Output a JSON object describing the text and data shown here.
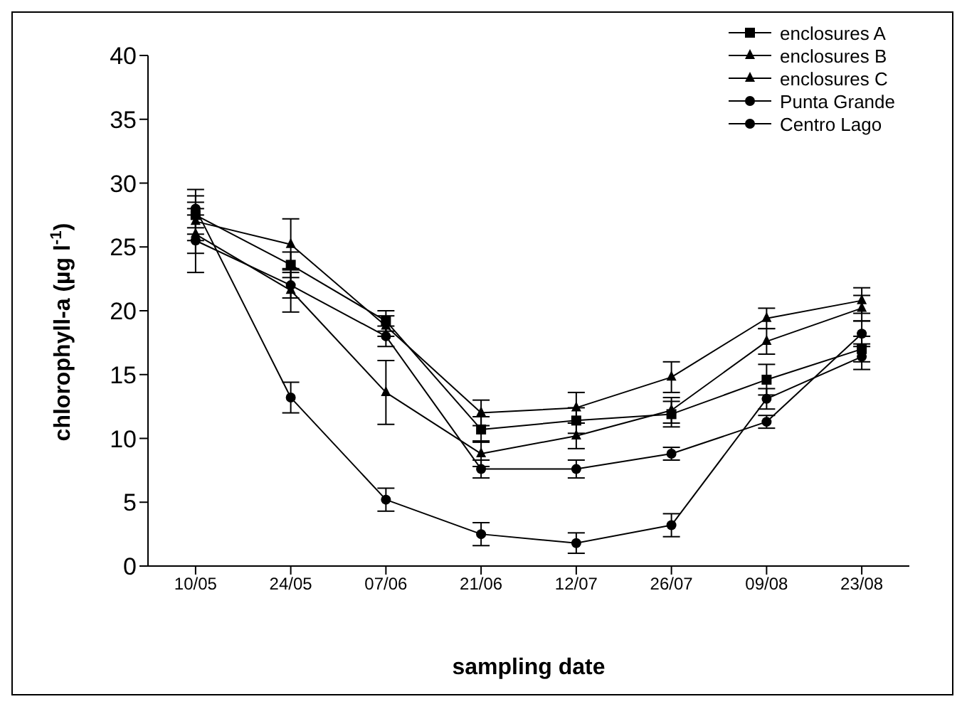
{
  "chart_data": {
    "type": "line",
    "xlabel": "sampling date",
    "ylabel": "chlorophyll-a (µg l$^{-1}$)",
    "categories": [
      "10/05",
      "24/05",
      "07/06",
      "21/06",
      "12/07",
      "26/07",
      "09/08",
      "23/08"
    ],
    "ylim": [
      0,
      40
    ],
    "yticks": [
      0,
      5,
      10,
      15,
      20,
      25,
      30,
      35,
      40
    ],
    "grid": false,
    "legend": "top right",
    "line_style": "solid",
    "series": [
      {
        "name": "enclosures A",
        "color": "#000000",
        "marker": "square",
        "values": [
          27.5,
          23.6,
          19.2,
          10.7,
          11.4,
          11.9,
          14.6,
          17
        ],
        "errors": [
          1.5,
          1,
          0.8,
          1,
          1,
          1,
          1.2,
          1
        ]
      },
      {
        "name": "enclosures B",
        "color": "#000000",
        "marker": "triangle",
        "values": [
          26,
          21.6,
          13.6,
          8.8,
          10.2,
          12.2,
          17.6,
          20.2
        ],
        "errors": [
          1.5,
          1.7,
          2.5,
          1,
          1,
          1,
          1,
          1
        ]
      },
      {
        "name": "enclosures C",
        "color": "#000000",
        "marker": "triangle",
        "values": [
          27,
          25.2,
          18.8,
          12,
          12.4,
          14.8,
          19.4,
          20.8
        ],
        "errors": [
          1.5,
          2,
          0.8,
          1,
          1.2,
          1.2,
          0.8,
          1
        ]
      },
      {
        "name": "Punta Grande",
        "color": "#000000",
        "marker": "circle",
        "values": [
          25.5,
          22,
          18,
          7.6,
          7.6,
          8.8,
          11.3,
          18.2
        ],
        "errors": [
          2.5,
          1,
          0.8,
          0.7,
          0.7,
          0.5,
          0.5,
          1
        ]
      },
      {
        "name": "Centro Lago",
        "color": "#000000",
        "marker": "circle",
        "values": [
          28,
          13.2,
          5.2,
          2.5,
          1.8,
          3.2,
          13.1,
          16.4
        ],
        "errors": [
          1.5,
          1.2,
          0.9,
          0.9,
          0.8,
          0.9,
          0.8,
          1
        ]
      }
    ]
  }
}
